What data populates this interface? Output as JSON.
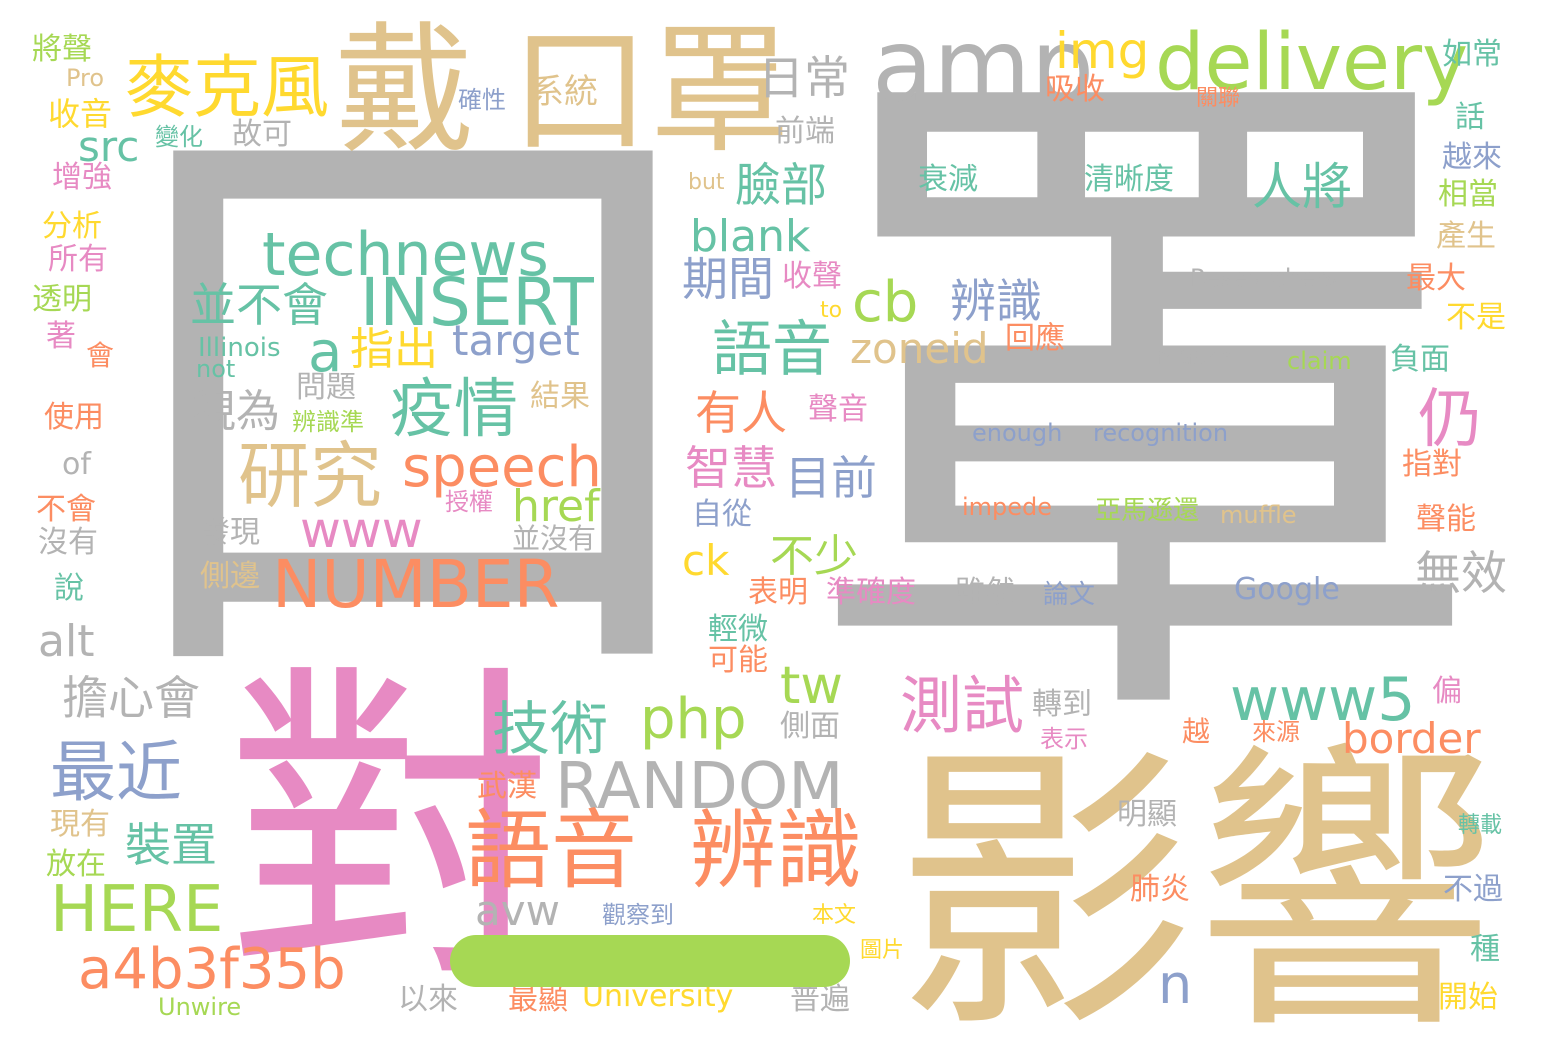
{
  "palette": {
    "gray": "#b3b3b3",
    "tan": "#e0c38c",
    "pink": "#e78ac3",
    "green": "#a6d854",
    "teal": "#66c2a5",
    "orange": "#fc8d62",
    "blue": "#8da0cb",
    "yellow": "#ffd92f"
  },
  "words": [
    {
      "text": "罩",
      "color": "gray"
    },
    {
      "text": "口",
      "color": "gray"
    },
    {
      "text": "影響",
      "color": "tan"
    },
    {
      "text": "對",
      "color": "pink"
    },
    {
      "text": "戴",
      "color": "tan"
    },
    {
      "text": "口罩",
      "color": "tan"
    },
    {
      "text": "amp",
      "color": "gray"
    },
    {
      "text": "delivery",
      "color": "green"
    },
    {
      "text": "img",
      "color": "yellow"
    },
    {
      "text": "麥克風",
      "color": "yellow"
    },
    {
      "text": "日常",
      "color": "gray"
    },
    {
      "text": "系統",
      "color": "tan"
    },
    {
      "text": "technews",
      "color": "teal"
    },
    {
      "text": "INSERT",
      "color": "teal"
    },
    {
      "text": "並不會",
      "color": "teal"
    },
    {
      "text": "a",
      "color": "teal"
    },
    {
      "text": "指出",
      "color": "yellow"
    },
    {
      "text": "target",
      "color": "blue"
    },
    {
      "text": "疫情",
      "color": "teal"
    },
    {
      "text": "研究",
      "color": "tan"
    },
    {
      "text": "speech",
      "color": "orange"
    },
    {
      "text": "href",
      "color": "green"
    },
    {
      "text": "www",
      "color": "pink"
    },
    {
      "text": "NUMBER",
      "color": "orange"
    },
    {
      "text": "視為",
      "color": "gray"
    },
    {
      "text": "語音",
      "color": "teal"
    },
    {
      "text": "cb",
      "color": "green"
    },
    {
      "text": "zoneid",
      "color": "tan"
    },
    {
      "text": "辨識",
      "color": "blue"
    },
    {
      "text": "臉部",
      "color": "teal"
    },
    {
      "text": "人將",
      "color": "teal"
    },
    {
      "text": "blank",
      "color": "teal"
    },
    {
      "text": "期間",
      "color": "blue"
    },
    {
      "text": "收聲",
      "color": "pink"
    },
    {
      "text": "仍",
      "color": "pink"
    },
    {
      "text": "有人",
      "color": "orange"
    },
    {
      "text": "智慧",
      "color": "pink"
    },
    {
      "text": "目前",
      "color": "blue"
    },
    {
      "text": "不少",
      "color": "green"
    },
    {
      "text": "ck",
      "color": "yellow"
    },
    {
      "text": "技術",
      "color": "teal"
    },
    {
      "text": "php",
      "color": "green"
    },
    {
      "text": "tw",
      "color": "green"
    },
    {
      "text": "測試",
      "color": "pink"
    },
    {
      "text": "www5",
      "color": "teal"
    },
    {
      "text": "border",
      "color": "orange"
    },
    {
      "text": "RANDOM",
      "color": "gray"
    },
    {
      "text": "語音",
      "color": "orange"
    },
    {
      "text": "辨識",
      "color": "orange"
    },
    {
      "text": "最近",
      "color": "blue"
    },
    {
      "text": "HERE",
      "color": "green"
    },
    {
      "text": "a4b3f35b",
      "color": "orange"
    },
    {
      "text": "裝置",
      "color": "teal"
    },
    {
      "text": "擔心會",
      "color": "gray"
    },
    {
      "text": "alt",
      "color": "gray"
    },
    {
      "text": "src",
      "color": "teal"
    },
    {
      "text": "avw",
      "color": "gray"
    },
    {
      "text": "n",
      "color": "blue"
    },
    {
      "text": "無效",
      "color": "gray"
    },
    {
      "text": "將聲",
      "color": "green"
    },
    {
      "text": "Pro",
      "color": "tan"
    },
    {
      "text": "收音",
      "color": "yellow"
    },
    {
      "text": "增強",
      "color": "pink"
    },
    {
      "text": "分析",
      "color": "yellow"
    },
    {
      "text": "所有",
      "color": "pink"
    },
    {
      "text": "透明",
      "color": "green"
    },
    {
      "text": "著",
      "color": "pink"
    },
    {
      "text": "會",
      "color": "orange"
    },
    {
      "text": "使用",
      "color": "orange"
    },
    {
      "text": "of",
      "color": "gray"
    },
    {
      "text": "不會",
      "color": "orange"
    },
    {
      "text": "沒有",
      "color": "gray"
    },
    {
      "text": "說",
      "color": "teal"
    },
    {
      "text": "現有",
      "color": "tan"
    },
    {
      "text": "放在",
      "color": "green"
    },
    {
      "text": "Unwire",
      "color": "green"
    },
    {
      "text": "以來",
      "color": "gray"
    },
    {
      "text": "最顯",
      "color": "orange"
    },
    {
      "text": "University",
      "color": "yellow"
    },
    {
      "text": "普遍",
      "color": "gray"
    },
    {
      "text": "變化",
      "color": "teal"
    },
    {
      "text": "故可",
      "color": "gray"
    },
    {
      "text": "確性",
      "color": "blue"
    },
    {
      "text": "前端",
      "color": "gray"
    },
    {
      "text": "Illinois",
      "color": "teal"
    },
    {
      "text": "not",
      "color": "teal"
    },
    {
      "text": "問題",
      "color": "gray"
    },
    {
      "text": "辨識準",
      "color": "green"
    },
    {
      "text": "結果",
      "color": "tan"
    },
    {
      "text": "授權",
      "color": "pink"
    },
    {
      "text": "發現",
      "color": "gray"
    },
    {
      "text": "並沒有",
      "color": "gray"
    },
    {
      "text": "側邊",
      "color": "tan"
    },
    {
      "text": "吸收",
      "color": "orange"
    },
    {
      "text": "關聯",
      "color": "orange"
    },
    {
      "text": "如常",
      "color": "teal"
    },
    {
      "text": "話",
      "color": "teal"
    },
    {
      "text": "越來",
      "color": "blue"
    },
    {
      "text": "相當",
      "color": "green"
    },
    {
      "text": "產生",
      "color": "tan"
    },
    {
      "text": "最大",
      "color": "orange"
    },
    {
      "text": "不是",
      "color": "yellow"
    },
    {
      "text": "負面",
      "color": "teal"
    },
    {
      "text": "指對",
      "color": "orange"
    },
    {
      "text": "聲能",
      "color": "orange"
    },
    {
      "text": "but",
      "color": "tan"
    },
    {
      "text": "衰減",
      "color": "teal"
    },
    {
      "text": "清晰度",
      "color": "teal"
    },
    {
      "text": "Researchers",
      "color": "gray"
    },
    {
      "text": "to",
      "color": "yellow"
    },
    {
      "text": "回應",
      "color": "orange"
    },
    {
      "text": "masks",
      "color": "gray"
    },
    {
      "text": "claim",
      "color": "green"
    },
    {
      "text": "聲音",
      "color": "pink"
    },
    {
      "text": "enough",
      "color": "blue"
    },
    {
      "text": "recognition",
      "color": "blue"
    },
    {
      "text": "impede",
      "color": "orange"
    },
    {
      "text": "亞馬遜還",
      "color": "green"
    },
    {
      "text": "muffle",
      "color": "tan"
    },
    {
      "text": "自從",
      "color": "blue"
    },
    {
      "text": "表明",
      "color": "orange"
    },
    {
      "text": "準確度",
      "color": "pink"
    },
    {
      "text": "雖然",
      "color": "gray"
    },
    {
      "text": "論文",
      "color": "blue"
    },
    {
      "text": "Google",
      "color": "blue"
    },
    {
      "text": "輕微",
      "color": "teal"
    },
    {
      "text": "可能",
      "color": "orange"
    },
    {
      "text": "轉到",
      "color": "gray"
    },
    {
      "text": "偏",
      "color": "pink"
    },
    {
      "text": "側面",
      "color": "gray"
    },
    {
      "text": "表示",
      "color": "pink"
    },
    {
      "text": "越",
      "color": "orange"
    },
    {
      "text": "來源",
      "color": "orange"
    },
    {
      "text": "武漢",
      "color": "orange"
    },
    {
      "text": "明顯",
      "color": "gray"
    },
    {
      "text": "轉載",
      "color": "teal"
    },
    {
      "text": "肺炎",
      "color": "orange"
    },
    {
      "text": "不過",
      "color": "blue"
    },
    {
      "text": "觀察到",
      "color": "blue"
    },
    {
      "text": "本文",
      "color": "yellow"
    },
    {
      "text": "圖片",
      "color": "yellow"
    },
    {
      "text": "種",
      "color": "teal"
    },
    {
      "text": "開始",
      "color": "yellow"
    }
  ],
  "dash_color": "green"
}
